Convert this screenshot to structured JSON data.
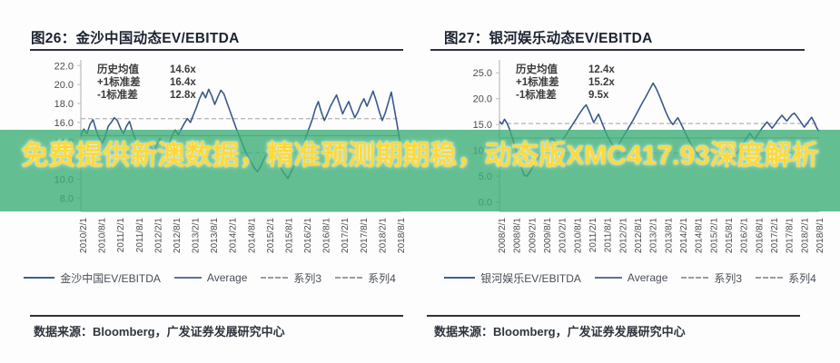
{
  "overlay": {
    "text": "免费提供新澳数据，精准预测期期稳，动态版XMC417.93深度解析",
    "text_color": "#ffd93a",
    "band_color": "#3cae77"
  },
  "colors": {
    "series_line": "#3a5a8b",
    "average_line": "#9b9b9b",
    "sigma_line": "#b3b3b3",
    "axis": "#bcbcbc",
    "title_text": "#1b2330"
  },
  "panels": [
    {
      "title": "图26：金沙中国动态EV/EBITDA",
      "source": "数据来源：Bloomberg，广发证券发展研究中心",
      "legend": [
        {
          "label": "金沙中国EV/EBITDA",
          "style": "solid"
        },
        {
          "label": "Average",
          "style": "solid"
        },
        {
          "label": "系列3",
          "style": "dashed"
        },
        {
          "label": "系列4",
          "style": "dashed"
        }
      ]
    },
    {
      "title": "图27：银河娱乐动态EV/EBITDA",
      "source": "数据来源：Bloomberg，广发证券发展研究中心",
      "legend": [
        {
          "label": "银河娱乐EV/EBITDA",
          "style": "solid"
        },
        {
          "label": "Average",
          "style": "solid"
        },
        {
          "label": "系列3",
          "style": "dashed"
        },
        {
          "label": "系列4",
          "style": "dashed"
        }
      ]
    }
  ],
  "chart_data": [
    {
      "type": "line",
      "title": "金沙中国动态EV/EBITDA",
      "xlabel": "",
      "ylabel": "EV/EBITDA (x)",
      "ylim": [
        6.6,
        22.6
      ],
      "yticks": [
        8,
        10,
        12,
        14,
        16,
        18,
        20,
        22
      ],
      "grid": false,
      "legend_position": "bottom",
      "annotations": [
        {
          "label": "历史均值",
          "value": "14.6x"
        },
        {
          "label": "+1标准差",
          "value": "16.4x"
        },
        {
          "label": "-1标准差",
          "value": "12.8x"
        }
      ],
      "x_labels": [
        "2010/2/1",
        "2010/8/1",
        "2011/2/1",
        "2011/8/1",
        "2012/2/1",
        "2012/8/1",
        "2013/2/1",
        "2013/8/1",
        "2014/2/1",
        "2014/8/1",
        "2015/2/1",
        "2015/8/1",
        "2016/2/1",
        "2016/8/1",
        "2017/2/1",
        "2017/8/1",
        "2018/2/1",
        "2018/8/1"
      ],
      "series": [
        {
          "name": "金沙中国EV/EBITDA",
          "values": [
            14.6,
            15.3,
            14.8,
            15.8,
            16.3,
            15.2,
            14.4,
            13.8,
            14.5,
            15.6,
            16.0,
            16.5,
            16.2,
            15.4,
            14.8,
            15.6,
            16.1,
            15.0,
            14.2,
            13.4,
            12.8,
            13.3,
            13.9,
            13.4,
            12.9,
            13.6,
            14.3,
            13.7,
            13.1,
            13.8,
            14.6,
            15.2,
            14.7,
            15.3,
            15.9,
            16.4,
            16.0,
            16.8,
            17.6,
            18.5,
            19.2,
            18.6,
            19.5,
            18.8,
            17.9,
            18.7,
            19.4,
            19.0,
            18.1,
            17.2,
            16.3,
            15.4,
            14.6,
            13.8,
            13.0,
            12.4,
            11.8,
            11.2,
            10.8,
            11.3,
            12.0,
            12.7,
            13.3,
            12.8,
            12.2,
            11.6,
            11.0,
            10.5,
            10.1,
            10.7,
            11.4,
            12.0,
            12.8,
            13.6,
            14.5,
            15.4,
            16.3,
            17.4,
            18.2,
            17.1,
            16.2,
            16.9,
            17.7,
            18.3,
            18.9,
            17.9,
            16.9,
            17.6,
            18.2,
            17.3,
            16.5,
            17.1,
            17.9,
            18.5,
            17.7,
            18.5,
            19.3,
            18.3,
            17.2,
            16.2,
            17.0,
            18.1,
            19.2,
            17.4,
            15.6,
            13.6
          ]
        },
        {
          "name": "Average",
          "value": 14.6
        },
        {
          "name": "系列3 (+1标准差)",
          "value": 16.4
        },
        {
          "name": "系列4 (-1标准差)",
          "value": 12.8
        }
      ]
    },
    {
      "type": "line",
      "title": "银河娱乐动态EV/EBITDA",
      "xlabel": "",
      "ylabel": "EV/EBITDA (x)",
      "ylim": [
        -1.8,
        27.5
      ],
      "yticks": [
        0,
        5,
        10,
        15,
        20,
        25
      ],
      "grid": false,
      "legend_position": "bottom",
      "annotations": [
        {
          "label": "历史均值",
          "value": "12.4x"
        },
        {
          "label": "+1标准差",
          "value": "15.2x"
        },
        {
          "label": "-1标准差",
          "value": "9.5x"
        }
      ],
      "x_labels": [
        "2008/2/1",
        "2008/8/1",
        "2009/2/1",
        "2009/8/1",
        "2010/2/1",
        "2010/8/1",
        "2011/2/1",
        "2011/8/1",
        "2012/2/1",
        "2012/8/1",
        "2013/2/1",
        "2013/8/1",
        "2014/2/1",
        "2014/8/1",
        "2015/2/1",
        "2015/8/1",
        "2016/2/1",
        "2016/8/1",
        "2017/2/1",
        "2017/8/1",
        "2018/2/1",
        "2018/8/1"
      ],
      "series": [
        {
          "name": "银河娱乐EV/EBITDA",
          "values": [
            15.6,
            15.1,
            16.0,
            15.3,
            14.2,
            12.8,
            11.2,
            9.6,
            8.0,
            6.4,
            5.2,
            5.0,
            5.6,
            6.4,
            7.2,
            8.1,
            8.9,
            9.7,
            10.4,
            11.1,
            11.8,
            12.4,
            12.0,
            11.4,
            10.8,
            11.6,
            12.4,
            13.1,
            13.9,
            14.6,
            15.4,
            16.1,
            16.9,
            17.6,
            18.3,
            18.8,
            17.8,
            16.6,
            15.4,
            16.2,
            17.0,
            15.8,
            14.6,
            13.4,
            12.4,
            11.6,
            10.9,
            10.4,
            11.1,
            11.9,
            12.7,
            13.5,
            14.3,
            15.1,
            15.9,
            16.8,
            17.7,
            18.6,
            19.5,
            20.3,
            21.2,
            22.1,
            23.0,
            22.2,
            21.2,
            20.0,
            18.8,
            17.6,
            16.5,
            15.6,
            15.0,
            15.7,
            16.3,
            15.4,
            14.4,
            13.4,
            12.4,
            11.5,
            10.7,
            9.9,
            9.2,
            8.6,
            8.1,
            8.5,
            9.1,
            9.7,
            10.3,
            9.8,
            9.3,
            8.7,
            8.1,
            7.6,
            7.2,
            7.7,
            8.3,
            8.9,
            9.6,
            10.3,
            11.1,
            11.9,
            12.6,
            13.3,
            12.7,
            12.1,
            12.9,
            13.6,
            14.3,
            14.9,
            15.5,
            14.9,
            14.3,
            14.9,
            15.6,
            16.2,
            16.8,
            16.2,
            15.7,
            16.3,
            16.9,
            17.2,
            16.6,
            15.9,
            15.2,
            14.5,
            15.1,
            15.8,
            16.4,
            15.5,
            14.4,
            13.6
          ]
        },
        {
          "name": "Average",
          "value": 12.4
        },
        {
          "name": "系列3 (+1标准差)",
          "value": 15.2
        },
        {
          "name": "系列4 (-1标准差)",
          "value": 9.5
        }
      ]
    }
  ]
}
